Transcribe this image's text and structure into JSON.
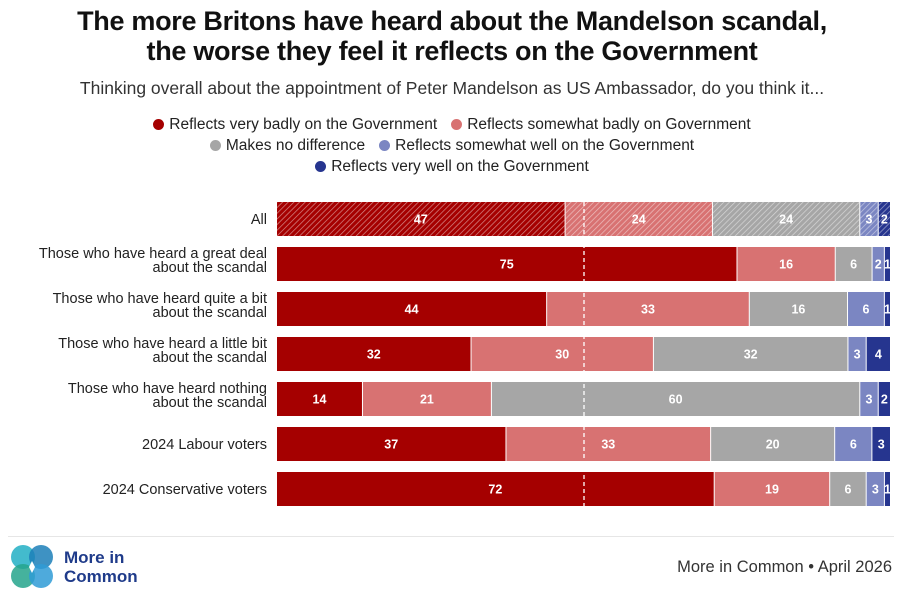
{
  "title_line1": "The more Britons have heard about the Mandelson scandal,",
  "title_line2": "the worse they feel it reflects on the Government",
  "subtitle": "Thinking overall about the appointment of Peter Mandelson as US Ambassador, do you think it...",
  "source": "More in Common • April 2026",
  "logo": {
    "line1": "More in",
    "line2": "Common",
    "icon": "overlapping-circles-logo"
  },
  "colors": {
    "very_badly": "#a50000",
    "somewhat_badly": "#d87272",
    "no_difference": "#a6a6a6",
    "somewhat_well": "#7b86c2",
    "very_well": "#26358f"
  },
  "chart_data": {
    "type": "bar",
    "orientation": "horizontal",
    "stacked": true,
    "xlim": [
      0,
      100
    ],
    "categories": [
      "All",
      "Those who have heard a great deal about the scandal",
      "Those who have heard quite a bit about the scandal",
      "Those who have heard a little bit about the scandal",
      "Those who have heard nothing about the scandal",
      "2024 Labour voters",
      "2024 Conservative voters"
    ],
    "category_lines": [
      [
        "All"
      ],
      [
        "Those who have heard a great deal",
        "about the scandal"
      ],
      [
        "Those who have heard quite a bit",
        "about the scandal"
      ],
      [
        "Those who have heard a little bit",
        "about the scandal"
      ],
      [
        "Those who have heard nothing",
        "about the scandal"
      ],
      [
        "2024 Labour voters"
      ],
      [
        "2024 Conservative voters"
      ]
    ],
    "series": [
      {
        "name": "Reflects very badly on the Government",
        "values": [
          47,
          75,
          44,
          32,
          14,
          37,
          72
        ]
      },
      {
        "name": "Reflects somewhat badly on Government",
        "values": [
          24,
          16,
          33,
          30,
          21,
          33,
          19
        ]
      },
      {
        "name": "Makes no difference",
        "values": [
          24,
          6,
          16,
          32,
          60,
          20,
          6
        ]
      },
      {
        "name": "Reflects somewhat well on the Government",
        "values": [
          3,
          2,
          6,
          3,
          3,
          6,
          3
        ]
      },
      {
        "name": "Reflects very well on the Government",
        "values": [
          2,
          1,
          1,
          4,
          2,
          3,
          1
        ]
      }
    ],
    "hatched_rows": [
      "All"
    ],
    "reference_line": 50,
    "legend_position": "top-center",
    "grid": false
  }
}
